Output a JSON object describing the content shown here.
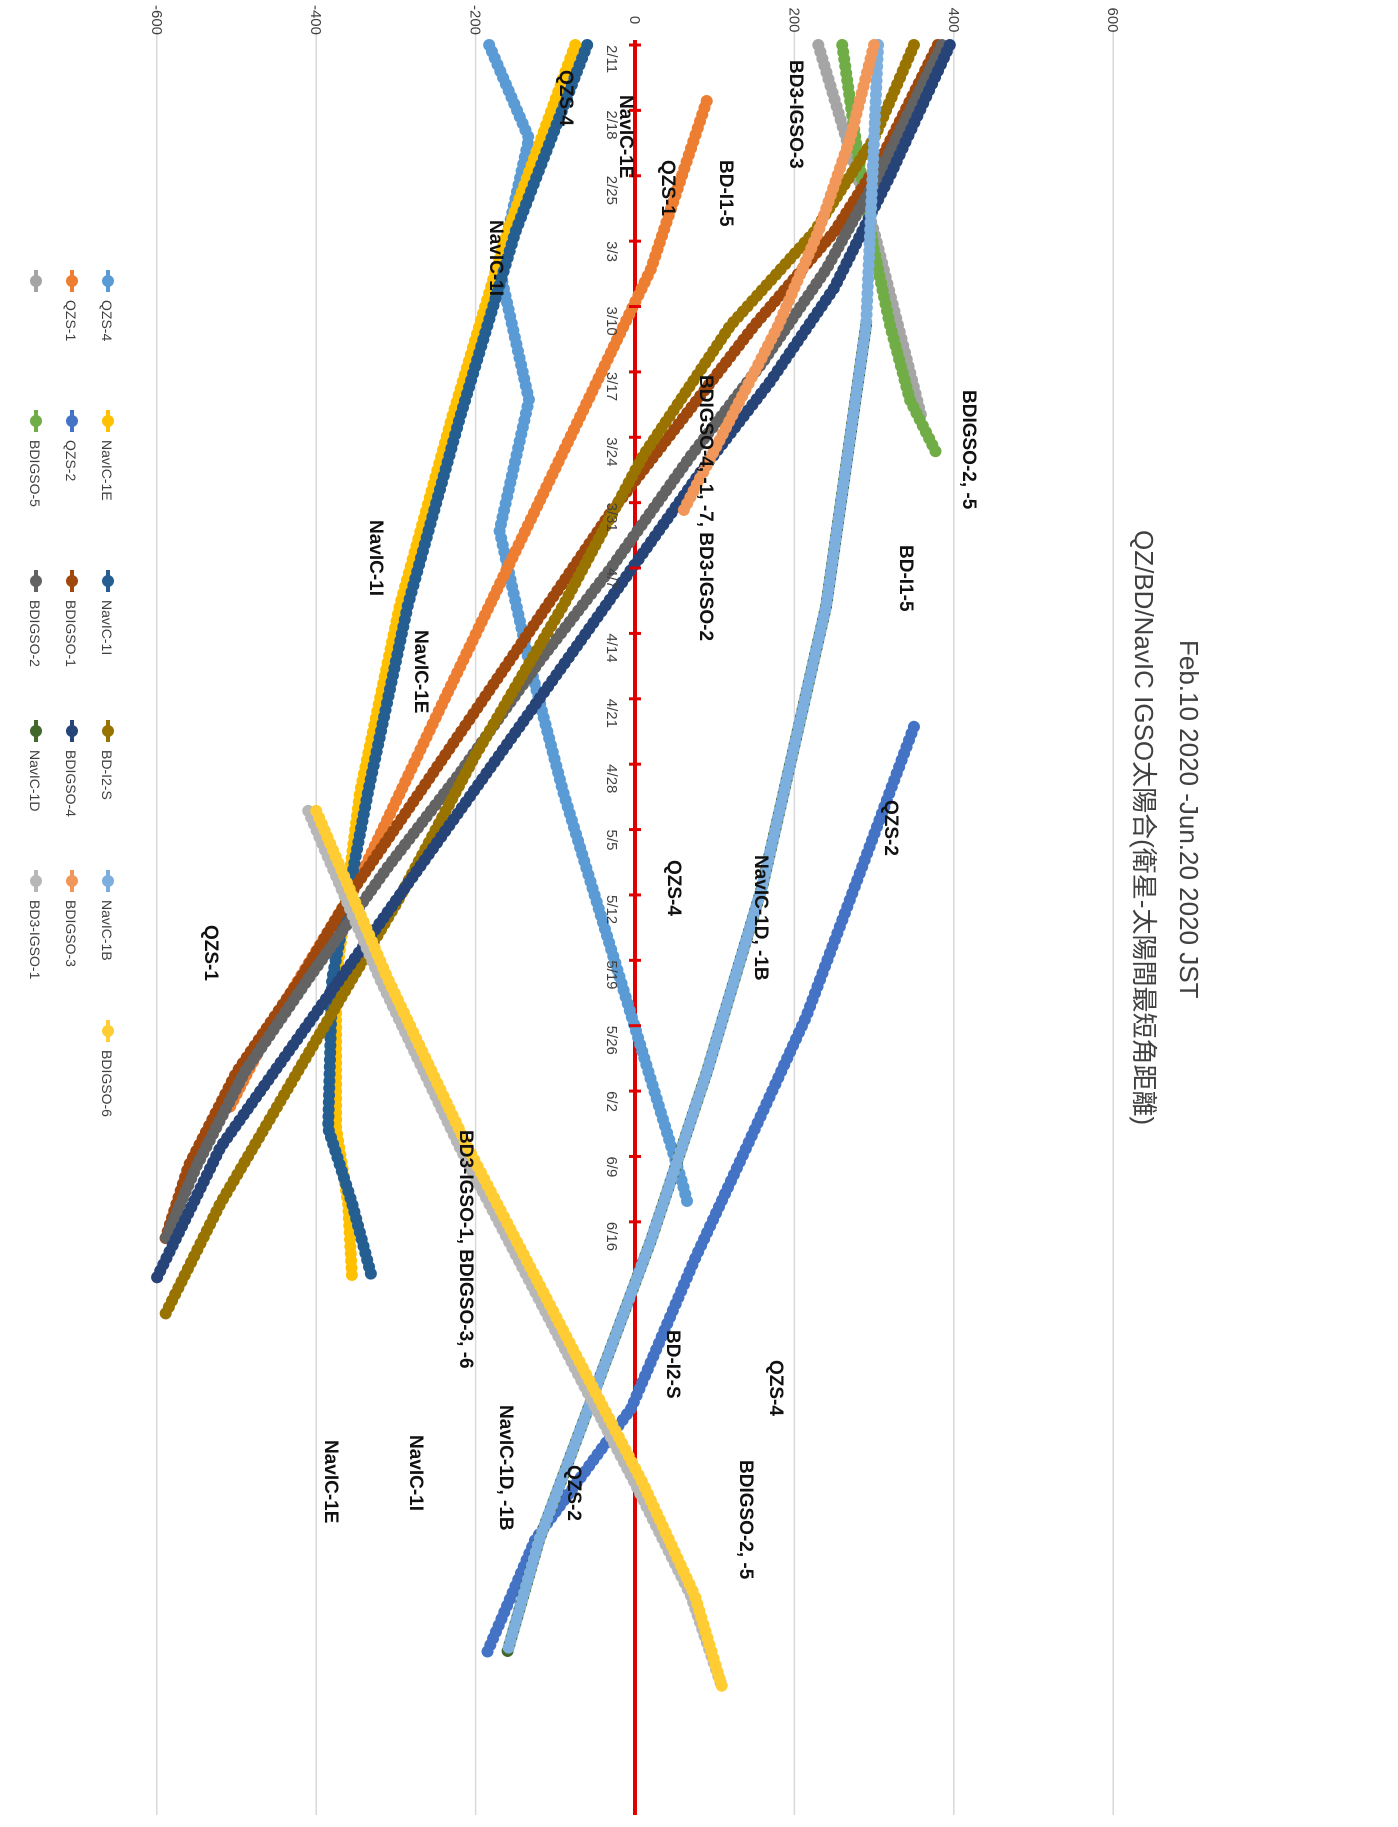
{
  "chart_data": {
    "type": "line",
    "title": "Feb.10 2020 -Jun.20 2020 JST",
    "subtitle": "QZ/BD/NavIC IGSO太陽合(衛星-太陽間最短角距離)",
    "orientation": "rotated-90-clockwise",
    "y_ticks": [
      "-600",
      "-400",
      "-200",
      "0",
      "200",
      "400",
      "600"
    ],
    "ylim": [
      -600,
      600
    ],
    "x_ticks": [
      "2/11",
      "2/18",
      "2/25",
      "3/3",
      "3/10",
      "3/17",
      "3/24",
      "3/31",
      "4/7",
      "4/14",
      "4/21",
      "4/28",
      "5/5",
      "5/12",
      "5/19",
      "5/26",
      "6/2",
      "6/9",
      "6/16"
    ],
    "x_range_days": [
      0,
      130
    ],
    "grid": true,
    "legend_position": "bottom",
    "series": [
      {
        "name": "QZS-4",
        "color": "#5B9BD5",
        "points": [
          [
            0,
            -183
          ],
          [
            10,
            -133
          ],
          [
            24,
            -170
          ],
          [
            38,
            -133
          ],
          [
            52,
            -170
          ],
          [
            66,
            -133
          ],
          [
            80,
            -90
          ],
          [
            94,
            -40
          ],
          [
            108,
            10
          ],
          [
            122,
            60
          ],
          [
            124,
            66
          ]
        ]
      },
      {
        "name": "QZS-1",
        "color": "#ED7D31",
        "points": [
          [
            6,
            90
          ],
          [
            24,
            20
          ],
          [
            40,
            -70
          ],
          [
            56,
            -160
          ],
          [
            72,
            -250
          ],
          [
            90,
            -350
          ],
          [
            104,
            -450
          ],
          [
            114,
            -510
          ]
        ]
      },
      {
        "name": "",
        "color": "#A5A5A5",
        "points": [
          [
            0,
            230
          ],
          [
            10,
            265
          ],
          [
            20,
            300
          ],
          [
            30,
            330
          ],
          [
            40,
            360
          ]
        ]
      },
      {
        "name": "NavIC-1E",
        "color": "#FFC000",
        "points": [
          [
            0,
            -75
          ],
          [
            20,
            -160
          ],
          [
            40,
            -230
          ],
          [
            60,
            -295
          ],
          [
            80,
            -345
          ],
          [
            100,
            -375
          ],
          [
            116,
            -375
          ],
          [
            124,
            -360
          ],
          [
            132,
            -355
          ]
        ]
      },
      {
        "name": "QZS-2",
        "color": "#4472C4",
        "points": [
          [
            73,
            350
          ],
          [
            88,
            285
          ],
          [
            104,
            215
          ],
          [
            118,
            140
          ],
          [
            130,
            75
          ],
          [
            146,
            -5
          ],
          [
            160,
            -125
          ],
          [
            172,
            -185
          ]
        ]
      },
      {
        "name": "BDIGSO-5",
        "color": "#70AD47",
        "points": [
          [
            0,
            260
          ],
          [
            12,
            280
          ],
          [
            22,
            300
          ],
          [
            30,
            320
          ],
          [
            38,
            345
          ],
          [
            44,
            380
          ]
        ]
      },
      {
        "name": "NavIC-1I",
        "color": "#255E91",
        "points": [
          [
            0,
            -60
          ],
          [
            20,
            -150
          ],
          [
            40,
            -220
          ],
          [
            60,
            -285
          ],
          [
            80,
            -335
          ],
          [
            100,
            -380
          ],
          [
            116,
            -385
          ],
          [
            124,
            -355
          ],
          [
            132,
            -330
          ]
        ]
      },
      {
        "name": "BDIGSO-1",
        "color": "#9E480E",
        "points": [
          [
            0,
            380
          ],
          [
            12,
            310
          ],
          [
            20,
            250
          ],
          [
            30,
            150
          ],
          [
            40,
            60
          ],
          [
            50,
            -30
          ],
          [
            60,
            -110
          ],
          [
            70,
            -190
          ],
          [
            80,
            -270
          ],
          [
            90,
            -350
          ],
          [
            100,
            -420
          ],
          [
            110,
            -500
          ],
          [
            120,
            -560
          ],
          [
            128,
            -590
          ]
        ]
      },
      {
        "name": "BDIGSO-2",
        "color": "#636363",
        "points": [
          [
            0,
            385
          ],
          [
            14,
            305
          ],
          [
            24,
            240
          ],
          [
            34,
            160
          ],
          [
            44,
            70
          ],
          [
            56,
            -30
          ],
          [
            66,
            -120
          ],
          [
            78,
            -220
          ],
          [
            88,
            -310
          ],
          [
            100,
            -410
          ],
          [
            110,
            -490
          ],
          [
            120,
            -550
          ],
          [
            128,
            -590
          ]
        ]
      },
      {
        "name": "BD-I2-S",
        "color": "#997300",
        "points": [
          [
            0,
            350
          ],
          [
            10,
            300
          ],
          [
            20,
            225
          ],
          [
            30,
            120
          ],
          [
            44,
            10
          ],
          [
            60,
            -90
          ],
          [
            76,
            -200
          ],
          [
            92,
            -300
          ],
          [
            108,
            -410
          ],
          [
            124,
            -520
          ],
          [
            136,
            -590
          ]
        ]
      },
      {
        "name": "BDIGSO-4",
        "color": "#264478",
        "points": [
          [
            0,
            395
          ],
          [
            14,
            320
          ],
          [
            26,
            250
          ],
          [
            36,
            170
          ],
          [
            46,
            80
          ],
          [
            58,
            -20
          ],
          [
            70,
            -120
          ],
          [
            82,
            -220
          ],
          [
            94,
            -320
          ],
          [
            106,
            -420
          ],
          [
            118,
            -520
          ],
          [
            132,
            -600
          ]
        ]
      },
      {
        "name": "NavIC-1D",
        "color": "#43682B",
        "points": [
          [
            30,
            290
          ],
          [
            60,
            240
          ],
          [
            90,
            160
          ],
          [
            110,
            90
          ],
          [
            128,
            20
          ],
          [
            144,
            -50
          ],
          [
            160,
            -120
          ],
          [
            172,
            -160
          ]
        ]
      },
      {
        "name": "NavIC-1B",
        "color": "#7CAFDD",
        "points": [
          [
            0,
            305
          ],
          [
            30,
            290
          ],
          [
            60,
            240
          ],
          [
            90,
            160
          ],
          [
            110,
            90
          ],
          [
            128,
            20
          ],
          [
            144,
            -50
          ],
          [
            160,
            -120
          ],
          [
            172,
            -160
          ]
        ]
      },
      {
        "name": "BDIGSO-3",
        "color": "#F1975A",
        "points": [
          [
            0,
            300
          ],
          [
            10,
            270
          ],
          [
            20,
            230
          ],
          [
            30,
            180
          ],
          [
            40,
            120
          ],
          [
            50,
            60
          ]
        ]
      },
      {
        "name": "BD3-IGSO-1",
        "color": "#B7B7B7",
        "points": [
          [
            82,
            -410
          ],
          [
            100,
            -320
          ],
          [
            118,
            -220
          ],
          [
            136,
            -110
          ],
          [
            154,
            0
          ],
          [
            166,
            70
          ],
          [
            176,
            110
          ]
        ]
      },
      {
        "name": "BDIGSO-6",
        "color": "#FFCD33",
        "points": [
          [
            82,
            -400
          ],
          [
            100,
            -310
          ],
          [
            118,
            -210
          ],
          [
            136,
            -100
          ],
          [
            154,
            10
          ],
          [
            166,
            75
          ],
          [
            176,
            110
          ]
        ]
      }
    ],
    "annotations": [
      "QZS-4",
      "NavIC-1E",
      "QZS-1",
      "BD3-IGSO-3",
      "BD-I1-5",
      "NavIC-1I",
      "BDIGSO-4, -1, -7, BD3-IGSO-2",
      "BDIGSO-2, -5",
      "BD-I1-5",
      "NavIC-1I",
      "NavIC-1E",
      "QZS-2",
      "QZS-1",
      "QZS-4",
      "NavIC-1D, -1B",
      "BD3-IGSO-1, BDIGSO-3, -6",
      "BD-I2-S",
      "QZS-4",
      "NavIC-1D, -1B",
      "BDIGSO-2, -5",
      "NavIC-1I",
      "NavIC-1E",
      "QZS-2"
    ]
  }
}
